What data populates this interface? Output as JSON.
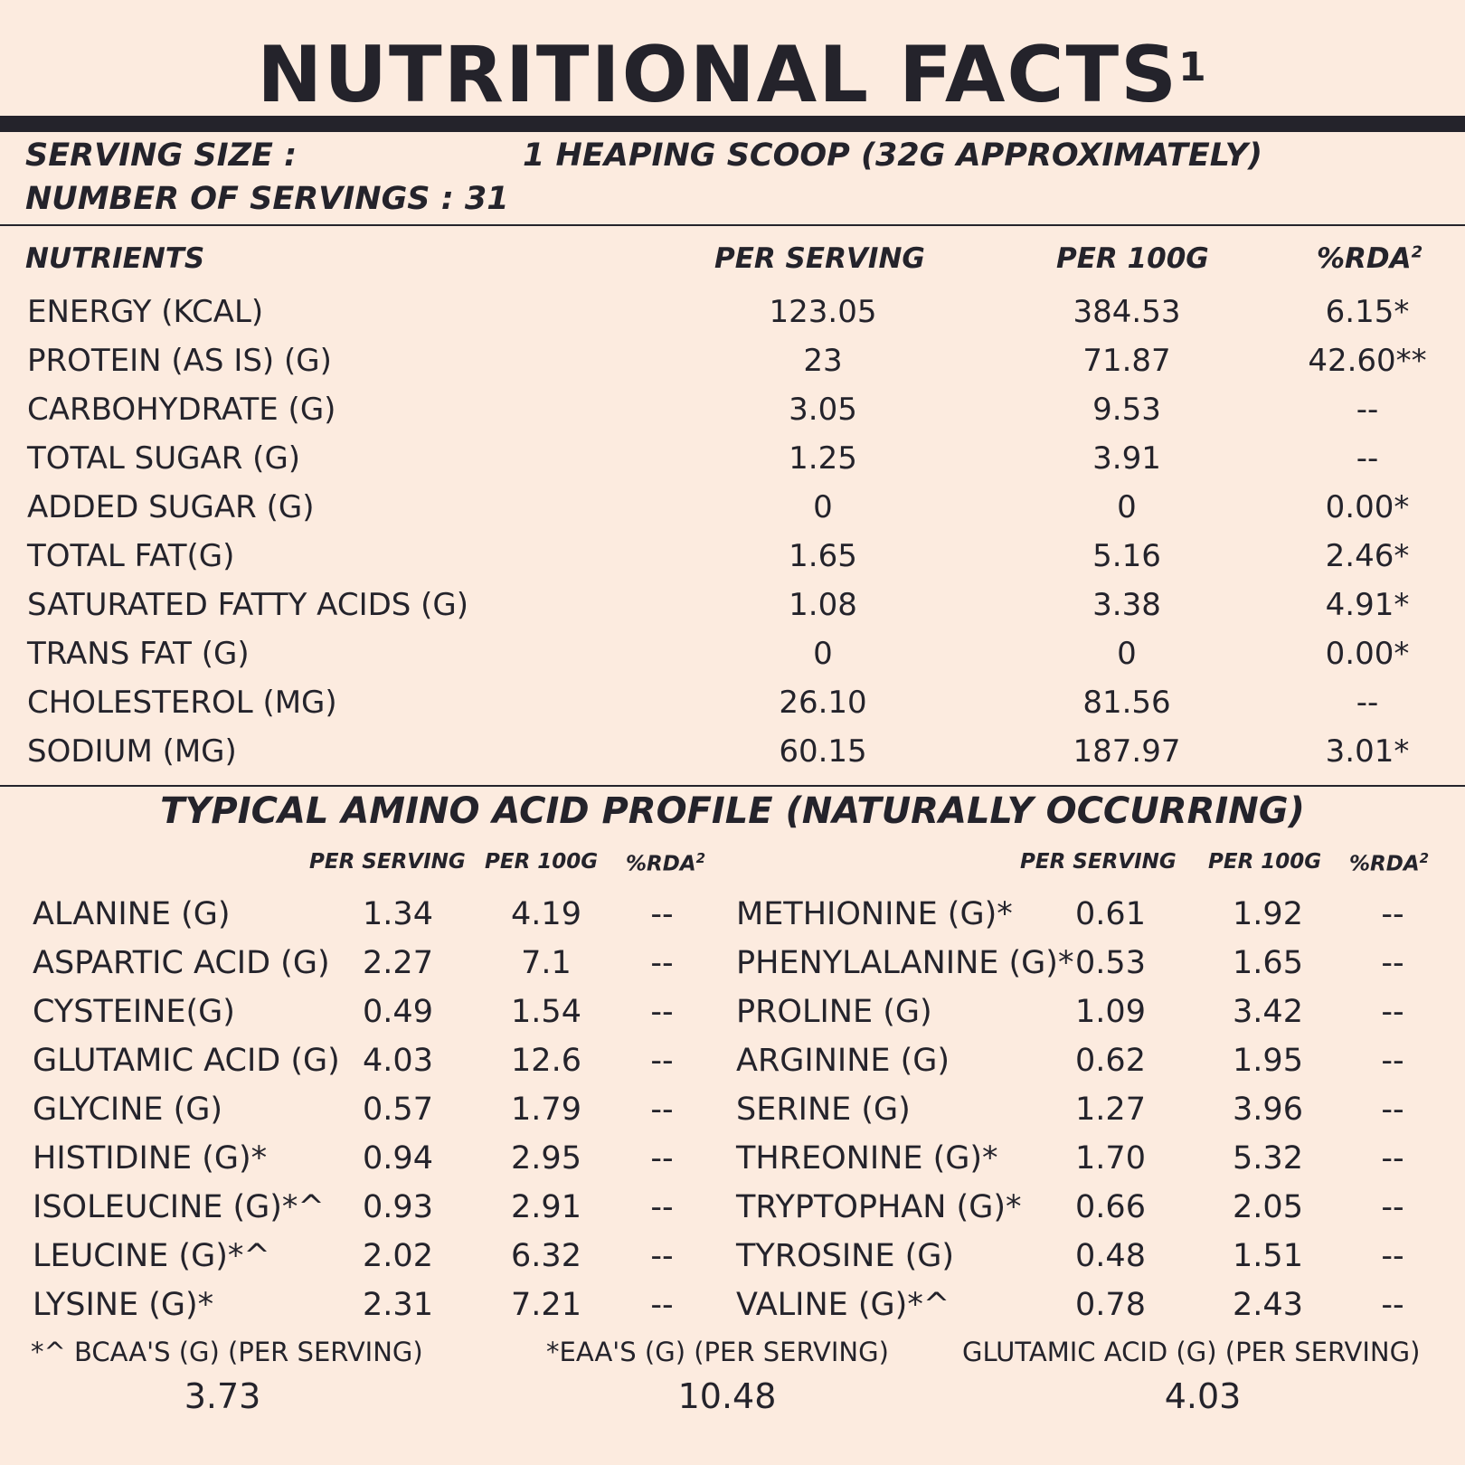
{
  "title": "NUTRITIONAL FACTS",
  "title_sup": "1",
  "serving": {
    "size_label": "SERVING SIZE :",
    "size_value": "1 HEAPING SCOOP (32G APPROXIMATELY)",
    "servings_label": "NUMBER OF SERVINGS : 31"
  },
  "nutrients": {
    "headers": {
      "name": "NUTRIENTS",
      "per_serving": "PER SERVING",
      "per_100g": "PER 100G",
      "rda": "%RDA",
      "rda_sup": "2"
    },
    "rows": [
      {
        "name": "ENERGY (KCAL)",
        "per_serving": "123.05",
        "per_100g": "384.53",
        "rda": "6.15*"
      },
      {
        "name": "PROTEIN (AS IS) (G)",
        "per_serving": "23",
        "per_100g": "71.87",
        "rda": "42.60**"
      },
      {
        "name": "CARBOHYDRATE (G)",
        "per_serving": "3.05",
        "per_100g": "9.53",
        "rda": "--"
      },
      {
        "name": "TOTAL SUGAR (G)",
        "per_serving": "1.25",
        "per_100g": "3.91",
        "rda": "--"
      },
      {
        "name": "ADDED SUGAR (G)",
        "per_serving": "0",
        "per_100g": "0",
        "rda": "0.00*"
      },
      {
        "name": "TOTAL FAT(G)",
        "per_serving": "1.65",
        "per_100g": "5.16",
        "rda": "2.46*"
      },
      {
        "name": "SATURATED FATTY ACIDS (G)",
        "per_serving": "1.08",
        "per_100g": "3.38",
        "rda": "4.91*"
      },
      {
        "name": "TRANS FAT (G)",
        "per_serving": "0",
        "per_100g": "0",
        "rda": "0.00*"
      },
      {
        "name": "CHOLESTEROL (MG)",
        "per_serving": "26.10",
        "per_100g": "81.56",
        "rda": "--"
      },
      {
        "name": "SODIUM (MG)",
        "per_serving": "60.15",
        "per_100g": "187.97",
        "rda": "3.01*"
      }
    ]
  },
  "amino": {
    "title": "TYPICAL AMINO ACID PROFILE (NATURALLY OCCURRING)",
    "headers": {
      "per_serving": "PER SERVING",
      "per_100g": "PER 100G",
      "rda": "%RDA",
      "rda_sup": "2"
    },
    "left": [
      {
        "name": "ALANINE (G)",
        "per_serving": "1.34",
        "per_100g": "4.19",
        "rda": "--"
      },
      {
        "name": "ASPARTIC ACID (G)",
        "per_serving": "2.27",
        "per_100g": "7.1",
        "rda": "--"
      },
      {
        "name": "CYSTEINE(G)",
        "per_serving": "0.49",
        "per_100g": "1.54",
        "rda": "--"
      },
      {
        "name": "GLUTAMIC ACID (G)",
        "per_serving": "4.03",
        "per_100g": "12.6",
        "rda": "--"
      },
      {
        "name": "GLYCINE (G)",
        "per_serving": "0.57",
        "per_100g": "1.79",
        "rda": "--"
      },
      {
        "name": "HISTIDINE (G)*",
        "per_serving": "0.94",
        "per_100g": "2.95",
        "rda": "--"
      },
      {
        "name": "ISOLEUCINE (G)*^",
        "per_serving": "0.93",
        "per_100g": "2.91",
        "rda": "--"
      },
      {
        "name": "LEUCINE (G)*^",
        "per_serving": "2.02",
        "per_100g": "6.32",
        "rda": "--"
      },
      {
        "name": "LYSINE (G)*",
        "per_serving": "2.31",
        "per_100g": "7.21",
        "rda": "--"
      }
    ],
    "right": [
      {
        "name": "METHIONINE (G)*",
        "per_serving": "0.61",
        "per_100g": "1.92",
        "rda": "--"
      },
      {
        "name": "PHENYLALANINE (G)*",
        "per_serving": "0.53",
        "per_100g": "1.65",
        "rda": "--"
      },
      {
        "name": "PROLINE (G)",
        "per_serving": "1.09",
        "per_100g": "3.42",
        "rda": "--"
      },
      {
        "name": "ARGININE (G)",
        "per_serving": "0.62",
        "per_100g": "1.95",
        "rda": "--"
      },
      {
        "name": "SERINE (G)",
        "per_serving": "1.27",
        "per_100g": "3.96",
        "rda": "--"
      },
      {
        "name": "THREONINE (G)*",
        "per_serving": "1.70",
        "per_100g": "5.32",
        "rda": "--"
      },
      {
        "name": "TRYPTOPHAN (G)*",
        "per_serving": "0.66",
        "per_100g": "2.05",
        "rda": "--"
      },
      {
        "name": "TYROSINE (G)",
        "per_serving": "0.48",
        "per_100g": "1.51",
        "rda": "--"
      },
      {
        "name": "VALINE (G)*^",
        "per_serving": "0.78",
        "per_100g": "2.43",
        "rda": "--"
      }
    ]
  },
  "footer": {
    "bcaa_label": "*^ BCAA'S (G) (PER SERVING)",
    "bcaa_value": "3.73",
    "eaa_label": "*EAA'S (G) (PER SERVING)",
    "eaa_value": "10.48",
    "glutamic_label": "GLUTAMIC ACID (G) (PER SERVING)",
    "glutamic_value": "4.03"
  },
  "colors": {
    "background": "#fcebdf",
    "ink": "#24232b"
  }
}
